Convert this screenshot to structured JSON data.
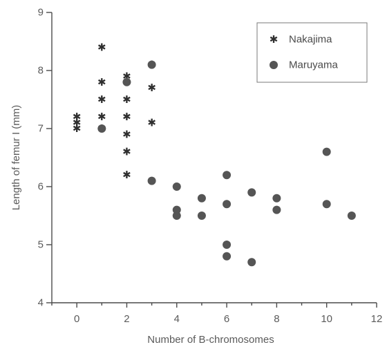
{
  "chart_data": {
    "type": "scatter",
    "title": "",
    "xlabel": "Number of B-chromosomes",
    "ylabel": "Length of femur I (mm)",
    "xlim": [
      -1,
      12
    ],
    "ylim": [
      4,
      9
    ],
    "xticks": [
      "0",
      "2",
      "4",
      "6",
      "8",
      "10",
      "12"
    ],
    "yticks": [
      "4",
      "5",
      "6",
      "7",
      "8",
      "9"
    ],
    "grid": false,
    "legend_position": "top-right",
    "series": [
      {
        "name": "Nakajima",
        "marker": "star",
        "color": "#2f2f2f",
        "points": [
          {
            "x": 0,
            "y": 7.2
          },
          {
            "x": 0,
            "y": 7.1
          },
          {
            "x": 0,
            "y": 7.0
          },
          {
            "x": 1,
            "y": 8.4
          },
          {
            "x": 1,
            "y": 7.8
          },
          {
            "x": 1,
            "y": 7.5
          },
          {
            "x": 1,
            "y": 7.2
          },
          {
            "x": 1,
            "y": 7.0
          },
          {
            "x": 2,
            "y": 7.9
          },
          {
            "x": 2,
            "y": 7.8
          },
          {
            "x": 2,
            "y": 7.5
          },
          {
            "x": 2,
            "y": 7.2
          },
          {
            "x": 2,
            "y": 6.9
          },
          {
            "x": 2,
            "y": 6.6
          },
          {
            "x": 2,
            "y": 6.2
          },
          {
            "x": 3,
            "y": 8.1
          },
          {
            "x": 3,
            "y": 7.7
          },
          {
            "x": 3,
            "y": 7.1
          }
        ]
      },
      {
        "name": "Maruyama",
        "marker": "circle",
        "color": "#555555",
        "points": [
          {
            "x": 1,
            "y": 7.0
          },
          {
            "x": 2,
            "y": 7.8
          },
          {
            "x": 3,
            "y": 8.1
          },
          {
            "x": 3,
            "y": 6.1
          },
          {
            "x": 4,
            "y": 6.0
          },
          {
            "x": 4,
            "y": 5.6
          },
          {
            "x": 4,
            "y": 5.5
          },
          {
            "x": 5,
            "y": 5.8
          },
          {
            "x": 5,
            "y": 5.5
          },
          {
            "x": 6,
            "y": 6.2
          },
          {
            "x": 6,
            "y": 5.7
          },
          {
            "x": 6,
            "y": 5.0
          },
          {
            "x": 6,
            "y": 4.8
          },
          {
            "x": 7,
            "y": 5.9
          },
          {
            "x": 7,
            "y": 4.7
          },
          {
            "x": 8,
            "y": 5.8
          },
          {
            "x": 8,
            "y": 5.6
          },
          {
            "x": 10,
            "y": 6.6
          },
          {
            "x": 10,
            "y": 5.7
          },
          {
            "x": 11,
            "y": 5.5
          }
        ]
      }
    ]
  }
}
